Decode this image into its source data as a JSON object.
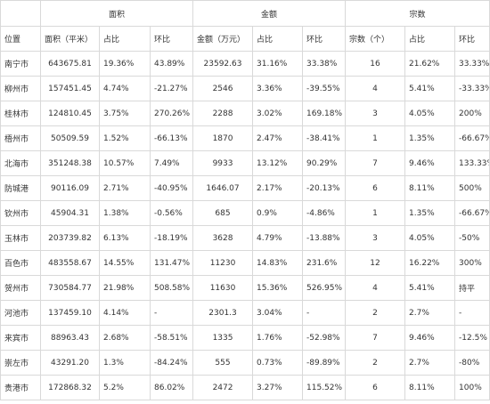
{
  "groups": [
    "面积",
    "金额",
    "宗数"
  ],
  "headers": [
    "位置",
    "面积（平米）",
    "占比",
    "环比",
    "金额（万元）",
    "占比",
    "环比",
    "宗数（个）",
    "占比",
    "环比"
  ],
  "rows": [
    [
      "南宁市",
      "643675.81",
      "19.36%",
      "43.89%",
      "23592.63",
      "31.16%",
      "33.38%",
      "16",
      "21.62%",
      "33.33%"
    ],
    [
      "柳州市",
      "157451.45",
      "4.74%",
      "-21.27%",
      "2546",
      "3.36%",
      "-39.55%",
      "4",
      "5.41%",
      "-33.33%"
    ],
    [
      "桂林市",
      "124810.45",
      "3.75%",
      "270.26%",
      "2288",
      "3.02%",
      "169.18%",
      "3",
      "4.05%",
      "200%"
    ],
    [
      "梧州市",
      "50509.59",
      "1.52%",
      "-66.13%",
      "1870",
      "2.47%",
      "-38.41%",
      "1",
      "1.35%",
      "-66.67%"
    ],
    [
      "北海市",
      "351248.38",
      "10.57%",
      "7.49%",
      "9933",
      "13.12%",
      "90.29%",
      "7",
      "9.46%",
      "133.33%"
    ],
    [
      "防城港",
      "90116.09",
      "2.71%",
      "-40.95%",
      "1646.07",
      "2.17%",
      "-20.13%",
      "6",
      "8.11%",
      "500%"
    ],
    [
      "钦州市",
      "45904.31",
      "1.38%",
      "-0.56%",
      "685",
      "0.9%",
      "-4.86%",
      "1",
      "1.35%",
      "-66.67%"
    ],
    [
      "玉林市",
      "203739.82",
      "6.13%",
      "-18.19%",
      "3628",
      "4.79%",
      "-13.88%",
      "3",
      "4.05%",
      "-50%"
    ],
    [
      "百色市",
      "483558.67",
      "14.55%",
      "131.47%",
      "11230",
      "14.83%",
      "231.6%",
      "12",
      "16.22%",
      "300%"
    ],
    [
      "贺州市",
      "730584.77",
      "21.98%",
      "508.58%",
      "11630",
      "15.36%",
      "526.95%",
      "4",
      "5.41%",
      "持平"
    ],
    [
      "河池市",
      "137459.10",
      "4.14%",
      "-",
      "2301.3",
      "3.04%",
      "-",
      "2",
      "2.7%",
      "-"
    ],
    [
      "来宾市",
      "88963.43",
      "2.68%",
      "-58.51%",
      "1335",
      "1.76%",
      "-52.98%",
      "7",
      "9.46%",
      "-12.5%"
    ],
    [
      "崇左市",
      "43291.20",
      "1.3%",
      "-84.24%",
      "555",
      "0.73%",
      "-89.89%",
      "2",
      "2.7%",
      "-80%"
    ],
    [
      "贵港市",
      "172868.32",
      "5.2%",
      "86.02%",
      "2472",
      "3.27%",
      "115.52%",
      "6",
      "8.11%",
      "100%"
    ]
  ]
}
